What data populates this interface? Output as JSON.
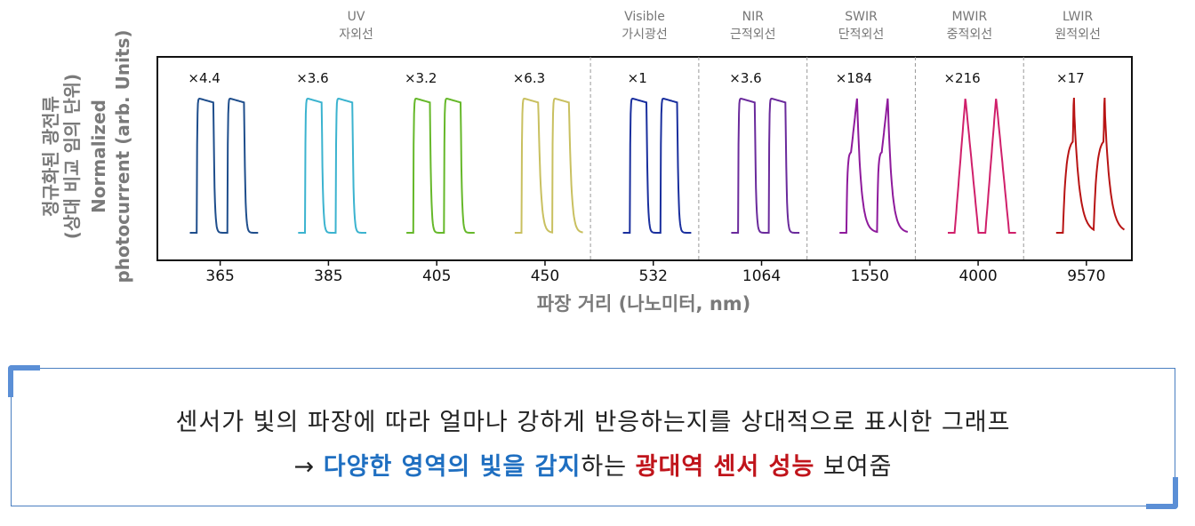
{
  "chart_data": {
    "type": "line",
    "ylabel_ko": "정규화된 광전류",
    "ylabel_ko_sub": "(상대 비교 임의 단위)",
    "ylabel_en": "Normalized",
    "ylabel_en_sub": "photocurrent (arb. Units)",
    "xlabel": "파장 거리 (나노미터, nm)",
    "grid": false,
    "bands": [
      {
        "name": "UV",
        "name_ko": "자외선",
        "wavelengths": [
          "365",
          "385",
          "405",
          "450"
        ]
      },
      {
        "name": "Visible",
        "name_ko": "가시광선",
        "wavelengths": [
          "532"
        ]
      },
      {
        "name": "NIR",
        "name_ko": "근적외선",
        "wavelengths": [
          "1064"
        ]
      },
      {
        "name": "SWIR",
        "name_ko": "단적외선",
        "wavelengths": [
          "1550"
        ]
      },
      {
        "name": "MWIR",
        "name_ko": "중적외선",
        "wavelengths": [
          "4000"
        ]
      },
      {
        "name": "LWIR",
        "name_ko": "원적외선",
        "wavelengths": [
          "9570"
        ]
      }
    ],
    "series": [
      {
        "wavelength": "365",
        "multiplier": "×4.4",
        "shape": "square",
        "color": "#1f4e8c"
      },
      {
        "wavelength": "385",
        "multiplier": "×3.6",
        "shape": "square",
        "color": "#3bb3cf"
      },
      {
        "wavelength": "405",
        "multiplier": "×3.2",
        "shape": "square",
        "color": "#66b82a"
      },
      {
        "wavelength": "450",
        "multiplier": "×6.3",
        "shape": "square-slow",
        "color": "#c9c060"
      },
      {
        "wavelength": "532",
        "multiplier": "×1",
        "shape": "square",
        "color": "#1a2f9e"
      },
      {
        "wavelength": "1064",
        "multiplier": "×3.6",
        "shape": "square",
        "color": "#6a2a9c"
      },
      {
        "wavelength": "1550",
        "multiplier": "×184",
        "shape": "rounded-peak",
        "color": "#8e1a9c"
      },
      {
        "wavelength": "4000",
        "multiplier": "×216",
        "shape": "triangle",
        "color": "#d0206b"
      },
      {
        "wavelength": "9570",
        "multiplier": "×17",
        "shape": "spike",
        "color": "#b81414"
      }
    ]
  },
  "caption": {
    "line1": "센서가 빛의 파장에 따라 얼마나 강하게 반응하는지를 상대적으로 표시한 그래프",
    "line2_prefix": "→ ",
    "line2_blue": "다양한 영역의 빛을 감지",
    "line2_mid": "하는 ",
    "line2_red": "광대역 센서 성능",
    "line2_suffix": " 보여줌"
  }
}
